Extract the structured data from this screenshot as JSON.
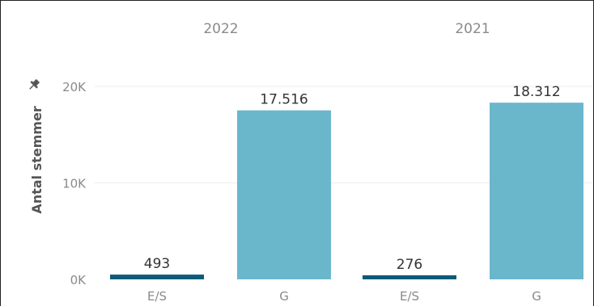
{
  "chart_data": {
    "type": "bar",
    "ylabel": "Antal stemmer",
    "ylim": [
      0,
      20000
    ],
    "yticks": [
      {
        "value": 0,
        "label": "0K"
      },
      {
        "value": 10000,
        "label": "10K"
      },
      {
        "value": 20000,
        "label": "20K"
      }
    ],
    "grid": true,
    "panels": [
      {
        "year": "2022",
        "bars": [
          {
            "category": "E/S",
            "value": 493,
            "label": "493",
            "color": "#0e5a78"
          },
          {
            "category": "G",
            "value": 17516,
            "label": "17.516",
            "color": "#6ab7cc"
          }
        ]
      },
      {
        "year": "2021",
        "bars": [
          {
            "category": "E/S",
            "value": 276,
            "label": "276",
            "color": "#0e5a78"
          },
          {
            "category": "G",
            "value": 18312,
            "label": "18.312",
            "color": "#6ab7cc"
          }
        ]
      }
    ]
  },
  "pin_icon": "pin-icon"
}
